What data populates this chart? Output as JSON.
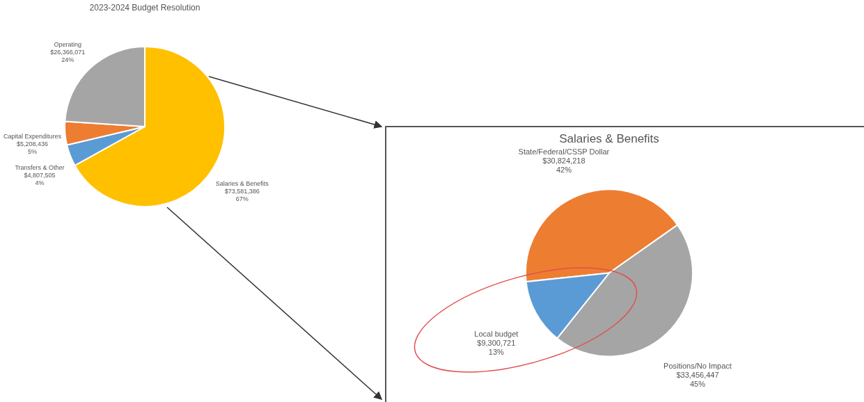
{
  "chart_data": [
    {
      "type": "pie",
      "title": "2023-2024 Budget Resolution",
      "categories": [
        "Salaries & Benefits",
        "Transfers & Other",
        "Capital Expenditures",
        "Operating"
      ],
      "values": [
        73581386,
        4807505,
        5208436,
        26366071
      ],
      "colors": [
        "#ffc000",
        "#5b9bd5",
        "#ed7d31",
        "#a5a5a5"
      ],
      "value_labels": [
        "$73,581,386\n67%",
        "$4,807,505\n4%",
        "$5,208,436\n5%",
        "$26,366,071\n24%"
      ]
    },
    {
      "type": "pie",
      "title": "Salaries & Benefits",
      "categories": [
        "State/Federal/CSSP Dollar",
        "Positions/No Impact",
        "Local budget"
      ],
      "values": [
        30824218,
        33456447,
        9300721
      ],
      "colors": [
        "#ed7d31",
        "#a5a5a5",
        "#5b9bd5"
      ],
      "value_labels": [
        "$30,824,218\n42%",
        "$33,456,447\n45%",
        "$9,300,721\n13%"
      ]
    }
  ]
}
